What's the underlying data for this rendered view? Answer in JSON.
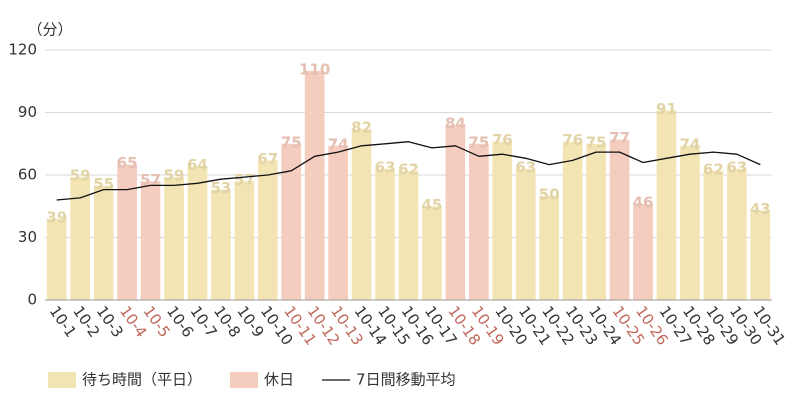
{
  "chart_data": {
    "type": "bar",
    "y_unit": "（分）",
    "categories": [
      "10-1",
      "10-2",
      "10-3",
      "10-4",
      "10-5",
      "10-6",
      "10-7",
      "10-8",
      "10-9",
      "10-10",
      "10-11",
      "10-12",
      "10-13",
      "10-14",
      "10-15",
      "10-16",
      "10-17",
      "10-18",
      "10-19",
      "10-20",
      "10-21",
      "10-22",
      "10-23",
      "10-24",
      "10-25",
      "10-26",
      "10-27",
      "10-28",
      "10-29",
      "10-30",
      "10-31"
    ],
    "series": [
      {
        "name": "待ち時間（平日）",
        "color": "#f3e4b4",
        "label_color": "#333333",
        "values": [
          39,
          59,
          55,
          null,
          null,
          59,
          64,
          53,
          57,
          67,
          null,
          null,
          null,
          82,
          63,
          62,
          45,
          null,
          null,
          76,
          63,
          50,
          76,
          75,
          null,
          null,
          91,
          74,
          62,
          63,
          43
        ]
      },
      {
        "name": "休日",
        "color": "#f5cdbf",
        "label_color": "#c0675a",
        "values": [
          null,
          null,
          null,
          65,
          57,
          null,
          null,
          null,
          null,
          null,
          75,
          110,
          74,
          null,
          null,
          null,
          null,
          84,
          75,
          null,
          null,
          null,
          null,
          null,
          77,
          46,
          null,
          null,
          null,
          null,
          null
        ]
      },
      {
        "name": "7日間移動平均",
        "type": "line",
        "color": "#111111",
        "values": [
          48,
          49,
          53,
          53,
          55,
          55,
          56,
          58,
          59,
          60,
          62,
          69,
          71,
          74,
          75,
          76,
          73,
          74,
          69,
          70,
          68,
          65,
          67,
          71,
          71,
          66,
          68,
          70,
          71,
          70,
          65
        ]
      }
    ],
    "ylim": [
      0,
      120
    ],
    "yticks": [
      0,
      30,
      60,
      90,
      120
    ],
    "grid": true
  }
}
